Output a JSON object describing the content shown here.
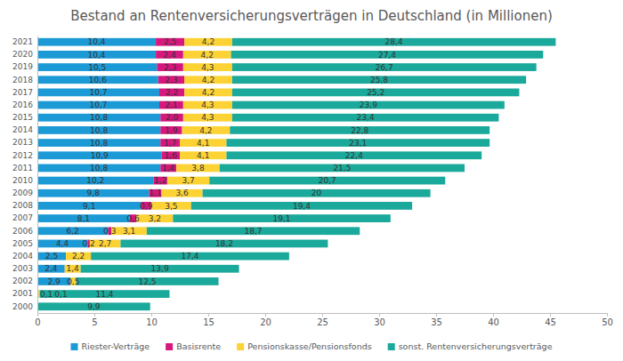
{
  "chart_data": {
    "type": "bar",
    "title": "Bestand an Rentenversicherungsverträgen in Deutschland (in Millionen)",
    "orientation": "horizontal",
    "stacked": true,
    "data_labels": true,
    "grid": false,
    "legend": "bottom",
    "categories": [
      "2021",
      "2020",
      "2019",
      "2018",
      "2017",
      "2016",
      "2015",
      "2014",
      "2013",
      "2012",
      "2011",
      "2010",
      "2009",
      "2008",
      "2007",
      "2006",
      "2005",
      "2004",
      "2003",
      "2002",
      "2001",
      "2000"
    ],
    "xlim": [
      0,
      50
    ],
    "xticks": [
      0,
      5,
      10,
      15,
      20,
      25,
      30,
      35,
      40,
      45,
      50
    ],
    "series": [
      {
        "name": "Riester-Verträge",
        "color": "#1b9ad6",
        "values": [
          10.4,
          10.4,
          10.5,
          10.6,
          10.7,
          10.7,
          10.8,
          10.8,
          10.8,
          10.9,
          10.8,
          10.2,
          9.8,
          9.1,
          8.1,
          6.2,
          4.4,
          2.5,
          2.4,
          2.9,
          0.1,
          null
        ],
        "value_labels": [
          "10,4",
          "10,4",
          "10,5",
          "10,6",
          "10,7",
          "10,7",
          "10,8",
          "10,8",
          "10,8",
          "10,9",
          "10,8",
          "10,2",
          "9,8",
          "9,1",
          "8,1",
          "6,2",
          "4,4",
          "2,5",
          "2,4",
          "2,9",
          "0,1",
          null
        ]
      },
      {
        "name": "Basisrente",
        "color": "#d6177e",
        "values": [
          2.5,
          2.4,
          2.3,
          2.3,
          2.2,
          2.1,
          2,
          1.9,
          1.7,
          1.6,
          1.4,
          1.2,
          1.1,
          0.9,
          0.6,
          0.3,
          0.2,
          null,
          null,
          null,
          null,
          null
        ],
        "value_labels": [
          "2,5",
          "2,4",
          "2,3",
          "2,3",
          "2,2",
          "2,1",
          "2,0",
          "1,9",
          "1,7",
          "1,6",
          "1,4",
          "1,2",
          "1,1",
          "0,9",
          "0,6",
          "0,3",
          "0,2",
          null,
          null,
          null,
          null,
          null
        ]
      },
      {
        "name": "Pensionskasse/Pensionsfonds",
        "color": "#fdd235",
        "values": [
          4.2,
          4.2,
          4.3,
          4.2,
          4.2,
          4.3,
          4.3,
          4.2,
          4.1,
          4.1,
          3.8,
          3.7,
          3.6,
          3.5,
          3.2,
          3.1,
          2.7,
          2.2,
          1.4,
          0.5,
          0.1,
          null
        ],
        "value_labels": [
          "4,2",
          "4,2",
          "4,3",
          "4,2",
          "4,2",
          "4,3",
          "4,3",
          "4,2",
          "4,1",
          "4,1",
          "3,8",
          "3,7",
          "3,6",
          "3,5",
          "3,2",
          "3,1",
          "2,7",
          "2,2",
          "1,4",
          "0,5",
          "0,1",
          null
        ]
      },
      {
        "name": "sonst. Rentenversicherungsverträge",
        "color": "#1aa99a",
        "values": [
          28.4,
          27.4,
          26.7,
          25.8,
          25.2,
          23.9,
          23.4,
          22.8,
          23.1,
          22.4,
          21.5,
          20.7,
          20,
          19.4,
          19.1,
          18.7,
          18.2,
          17.4,
          13.9,
          12.5,
          11.4,
          9.9
        ],
        "value_labels": [
          "28,4",
          "27,4",
          "26,7",
          "25,8",
          "25,2",
          "23,9",
          "23,4",
          "22,8",
          "23,1",
          "22,4",
          "21,5",
          "20,7",
          "20",
          "19,4",
          "19,1",
          "18,7",
          "18,2",
          "17,4",
          "13,9",
          "12,5",
          "11,4",
          "9,9"
        ]
      }
    ]
  }
}
